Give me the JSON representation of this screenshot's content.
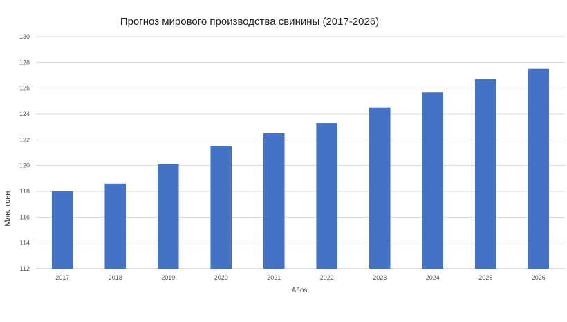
{
  "chart_data": {
    "type": "bar",
    "title": "Прогноз мирового производства свинины (2017-2026)",
    "xlabel": "Años",
    "ylabel": "Млн. тонн",
    "categories": [
      "2017",
      "2018",
      "2019",
      "2020",
      "2021",
      "2022",
      "2023",
      "2024",
      "2025",
      "2026"
    ],
    "values": [
      118.0,
      118.6,
      120.1,
      121.5,
      122.5,
      123.3,
      124.5,
      125.7,
      126.7,
      127.5
    ],
    "ylim": [
      112,
      130
    ],
    "yticks": [
      "112",
      "114",
      "116",
      "118",
      "120",
      "122",
      "124",
      "126",
      "128",
      "130"
    ],
    "grid": true,
    "legend": "none",
    "bar_color": "#4472C4"
  }
}
